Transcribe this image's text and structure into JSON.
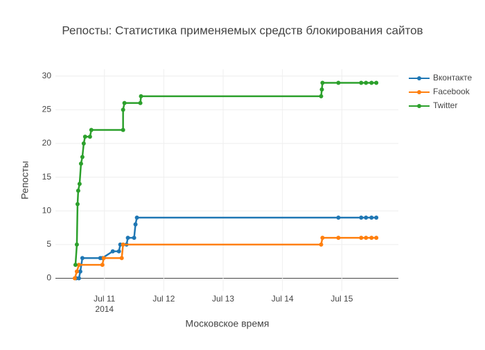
{
  "chart_data": {
    "type": "line",
    "title": "Репосты: Статистика применяемых средств блокирования сайтов",
    "x_label": "Московское время",
    "y_label": "Репосты",
    "x_year_label": "2014",
    "xlim": [
      10.174,
      15.953
    ],
    "xticks": [
      {
        "value": 11,
        "label": "Jul 11"
      },
      {
        "value": 12,
        "label": "Jul 12"
      },
      {
        "value": 13,
        "label": "Jul 13"
      },
      {
        "value": 14,
        "label": "Jul 14"
      },
      {
        "value": 15,
        "label": "Jul 15"
      }
    ],
    "ylim": [
      -1.9,
      31
    ],
    "yticks": [
      0,
      5,
      10,
      15,
      20,
      25,
      30
    ],
    "grid": true,
    "legend": "top-right",
    "series": [
      {
        "name": "Вконтакте",
        "color": "#1f77b4",
        "x": [
          10.523,
          10.57,
          10.593,
          10.628,
          10.93,
          10.965,
          11.14,
          11.244,
          11.267,
          11.372,
          11.395,
          11.5,
          11.523,
          11.547,
          14.942,
          15.326,
          15.407,
          15.5,
          15.581
        ],
        "values": [
          0,
          0,
          1,
          3,
          3,
          3,
          4,
          4,
          5,
          5,
          6,
          6,
          8,
          9,
          9,
          9,
          9,
          9,
          9
        ]
      },
      {
        "name": "Facebook",
        "color": "#ff7f0e",
        "x": [
          10.5,
          10.535,
          10.57,
          10.965,
          10.988,
          11.291,
          11.314,
          14.651,
          14.674,
          14.942,
          15.326,
          15.407,
          15.5,
          15.581
        ],
        "values": [
          0,
          1,
          2,
          2,
          3,
          3,
          5,
          5,
          6,
          6,
          6,
          6,
          6,
          6
        ]
      },
      {
        "name": "Twitter",
        "color": "#2ca02c",
        "x": [
          10.512,
          10.535,
          10.547,
          10.558,
          10.581,
          10.605,
          10.628,
          10.651,
          10.674,
          10.756,
          10.779,
          11.314,
          11.314,
          11.337,
          11.605,
          11.616,
          14.651,
          14.663,
          14.674,
          14.942,
          15.326,
          15.407,
          15.5,
          15.581
        ],
        "values": [
          2,
          5,
          11,
          13,
          14,
          17,
          18,
          20,
          21,
          21,
          22,
          22,
          25,
          26,
          26,
          27,
          27,
          28,
          29,
          29,
          29,
          29,
          29,
          29
        ]
      }
    ]
  }
}
